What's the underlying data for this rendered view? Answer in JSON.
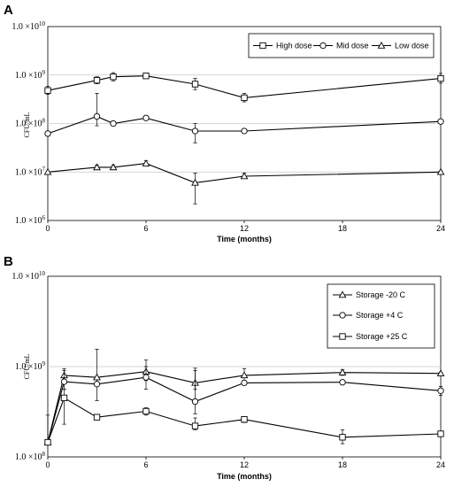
{
  "chart_data": [
    {
      "type": "line",
      "panel_label": "A",
      "x": [
        0,
        3,
        4,
        6,
        9,
        12,
        24
      ],
      "xticks": [
        0,
        6,
        12,
        18,
        24
      ],
      "xlim": [
        0,
        24
      ],
      "xlabel": "Time (months)",
      "ylabel": "CFU/mL",
      "yscale": "log",
      "ylim": [
        1000000,
        10000000000
      ],
      "ytick_mantissa": "1.0 ×10",
      "yticks": [
        {
          "value": 1000000,
          "exp": "6"
        },
        {
          "value": 10000000,
          "exp": "7"
        },
        {
          "value": 100000000,
          "exp": "8"
        },
        {
          "value": 1000000000,
          "exp": "9"
        },
        {
          "value": 10000000000,
          "exp": "10"
        }
      ],
      "grid": true,
      "legend_position": "top-right",
      "series": [
        {
          "name": "High dose",
          "marker": "square",
          "x": [
            0,
            3,
            4,
            6,
            9,
            12,
            24
          ],
          "values": [
            480000000,
            780000000,
            920000000,
            960000000,
            650000000,
            340000000,
            850000000
          ],
          "err_up": [
            580000000,
            920000000,
            1120000000,
            1050000000,
            850000000,
            420000000,
            1080000000
          ],
          "err_low": [
            400000000,
            660000000,
            760000000,
            880000000,
            500000000,
            280000000,
            680000000
          ]
        },
        {
          "name": "Mid dose",
          "marker": "circle",
          "x": [
            0,
            3,
            4,
            6,
            9,
            12,
            24
          ],
          "values": [
            62000000,
            140000000,
            100000000,
            130000000,
            70000000,
            70000000,
            110000000
          ],
          "err_up": [
            62000000,
            420000000,
            100000000,
            130000000,
            100000000,
            70000000,
            110000000
          ],
          "err_low": [
            62000000,
            90000000,
            100000000,
            130000000,
            40000000,
            70000000,
            110000000
          ]
        },
        {
          "name": "Low dose",
          "marker": "triangle",
          "x": [
            0,
            3,
            4,
            6,
            9,
            12,
            24
          ],
          "values": [
            10000000,
            12500000,
            12500000,
            15000000,
            6000000,
            8200000,
            10000000
          ],
          "err_up": [
            10000000,
            14000000,
            14000000,
            17000000,
            9500000,
            9500000,
            10500000
          ],
          "err_low": [
            10000000,
            11500000,
            11500000,
            14000000,
            2200000,
            7500000,
            9500000
          ]
        }
      ]
    },
    {
      "type": "line",
      "panel_label": "B",
      "x": [
        0,
        1,
        3,
        6,
        9,
        12,
        18,
        24
      ],
      "xticks": [
        0,
        6,
        12,
        18,
        24
      ],
      "xlim": [
        0,
        24
      ],
      "xlabel": "Time (months)",
      "ylabel": "CFU/mL",
      "yscale": "log",
      "ylim": [
        100000000,
        10000000000
      ],
      "ytick_mantissa": "1.0 ×10",
      "yticks": [
        {
          "value": 100000000,
          "exp": "8"
        },
        {
          "value": 1000000000,
          "exp": "9"
        },
        {
          "value": 10000000000,
          "exp": "10"
        }
      ],
      "grid": true,
      "legend_position": "top-right",
      "series": [
        {
          "name": "Storage -20 C",
          "marker": "triangle",
          "x": [
            0,
            1,
            3,
            6,
            9,
            12,
            18,
            24
          ],
          "values": [
            145000000,
            800000000,
            760000000,
            880000000,
            660000000,
            800000000,
            860000000,
            840000000
          ],
          "err_up": [
            290000000,
            950000000,
            1560000000,
            1180000000,
            960000000,
            950000000,
            920000000,
            860000000
          ],
          "err_low": [
            145000000,
            680000000,
            420000000,
            700000000,
            560000000,
            700000000,
            800000000,
            820000000
          ]
        },
        {
          "name": "Storage +4 C",
          "marker": "circle",
          "x": [
            0,
            1,
            3,
            6,
            9,
            12,
            18,
            24
          ],
          "values": [
            145000000,
            680000000,
            640000000,
            760000000,
            410000000,
            660000000,
            670000000,
            540000000
          ],
          "err_up": [
            145000000,
            900000000,
            640000000,
            1000000000,
            900000000,
            660000000,
            670000000,
            600000000
          ],
          "err_low": [
            145000000,
            560000000,
            640000000,
            560000000,
            300000000,
            660000000,
            670000000,
            480000000
          ]
        },
        {
          "name": "Storage +25 C",
          "marker": "square",
          "x": [
            0,
            1,
            3,
            6,
            9,
            12,
            18,
            24
          ],
          "values": [
            145000000,
            450000000,
            275000000,
            320000000,
            220000000,
            260000000,
            165000000,
            180000000
          ],
          "err_up": [
            145000000,
            560000000,
            275000000,
            350000000,
            270000000,
            280000000,
            200000000,
            180000000
          ],
          "err_low": [
            145000000,
            230000000,
            275000000,
            290000000,
            200000000,
            240000000,
            140000000,
            180000000
          ]
        }
      ]
    }
  ]
}
